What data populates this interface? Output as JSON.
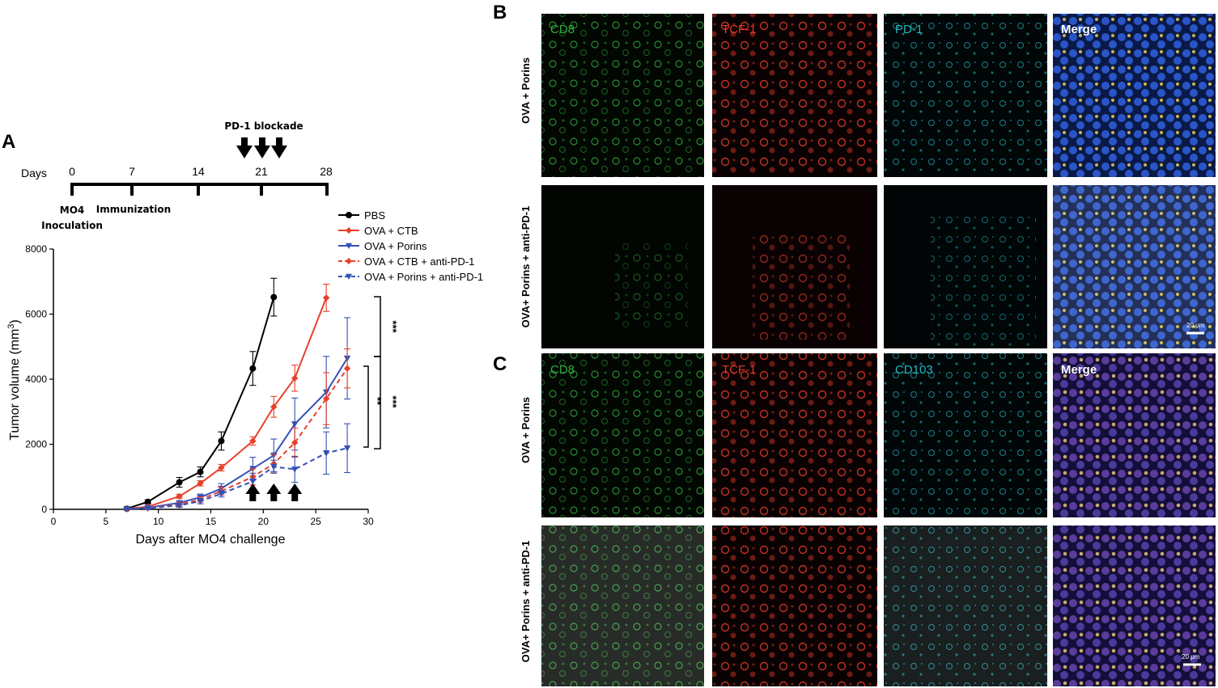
{
  "panels": {
    "a": "A",
    "b": "B",
    "c": "C"
  },
  "timeline": {
    "days_label": "Days",
    "ticks": [
      "0",
      "7",
      "14",
      "21",
      "28"
    ],
    "blockade_label": "PD-1 blockade",
    "inoculation_label_1": "MO4",
    "inoculation_label_2": "Inoculation",
    "immunization_label": "Immunization"
  },
  "chart_data": {
    "type": "line",
    "xlabel": "Days after MO4 challenge",
    "ylabel": "Tumor volume (mm",
    "ylabel_sup": "3",
    "ylabel_close": ")",
    "xlim": [
      0,
      30
    ],
    "ylim": [
      0,
      8000
    ],
    "x_ticks": [
      "0",
      "5",
      "10",
      "15",
      "20",
      "25",
      "30"
    ],
    "y_ticks": [
      "0",
      "2000",
      "4000",
      "6000",
      "8000"
    ],
    "legend_position": "top-right",
    "series": [
      {
        "name": "PBS",
        "color": "#000000",
        "dashed": false,
        "marker": "circle",
        "x": [
          7,
          9,
          12,
          14,
          16,
          19,
          21
        ],
        "y": [
          20,
          230,
          830,
          1150,
          2100,
          4330,
          6520
        ],
        "err": [
          30,
          60,
          150,
          150,
          280,
          520,
          580
        ]
      },
      {
        "name": "OVA + CTB",
        "color": "#e8402a",
        "dashed": false,
        "marker": "diamond",
        "x": [
          7,
          9,
          12,
          14,
          16,
          19,
          21,
          23,
          26
        ],
        "y": [
          15,
          80,
          400,
          800,
          1280,
          2100,
          3150,
          4030,
          6500
        ],
        "err": [
          20,
          30,
          60,
          80,
          100,
          130,
          320,
          400,
          420
        ]
      },
      {
        "name": "OVA + Porins",
        "color": "#3550b5",
        "dashed": false,
        "marker": "triangle-down",
        "x": [
          7,
          9,
          12,
          14,
          16,
          19,
          21,
          23,
          26,
          28
        ],
        "y": [
          10,
          50,
          200,
          370,
          640,
          1250,
          1660,
          2620,
          3600,
          4640
        ],
        "err": [
          15,
          25,
          60,
          100,
          150,
          350,
          500,
          800,
          1100,
          1250
        ]
      },
      {
        "name": "OVA + CTB + anti-PD-1",
        "color": "#e8402a",
        "dashed": true,
        "marker": "diamond",
        "x": [
          7,
          9,
          12,
          14,
          16,
          19,
          21,
          23,
          26,
          28
        ],
        "y": [
          10,
          40,
          150,
          300,
          560,
          1000,
          1400,
          2050,
          3400,
          4330
        ],
        "err": [
          15,
          20,
          60,
          80,
          120,
          250,
          280,
          450,
          800,
          600
        ]
      },
      {
        "name": "OVA + Porins + anti-PD-1",
        "color": "#3550b5",
        "dashed": true,
        "marker": "triangle-down",
        "x": [
          7,
          9,
          12,
          14,
          16,
          19,
          21,
          23,
          26,
          28
        ],
        "y": [
          10,
          30,
          120,
          250,
          480,
          860,
          1310,
          1230,
          1730,
          1880
        ],
        "err": [
          15,
          20,
          60,
          80,
          100,
          250,
          200,
          400,
          650,
          750
        ]
      }
    ],
    "arrow_days": [
      19,
      21,
      23
    ],
    "significance": [
      "***",
      "**",
      "***"
    ]
  },
  "micro": {
    "b_channels": [
      {
        "label": "CD8",
        "color": "#2fae3c"
      },
      {
        "label": "TCF-1",
        "color": "#e23a2a"
      },
      {
        "label": "PD-1",
        "color": "#22b6c2"
      },
      {
        "label": "Merge",
        "color": "#ffffff"
      }
    ],
    "c_channels": [
      {
        "label": "CD8",
        "color": "#2fae3c"
      },
      {
        "label": "TCF-1",
        "color": "#e23a2a"
      },
      {
        "label": "CD103",
        "color": "#22b6c2"
      },
      {
        "label": "Merge",
        "color": "#ffffff"
      }
    ],
    "row_labels": [
      "OVA + Porins",
      "OVA+ Porins + anti-PD-1"
    ],
    "scale_bar": "20 μm"
  }
}
